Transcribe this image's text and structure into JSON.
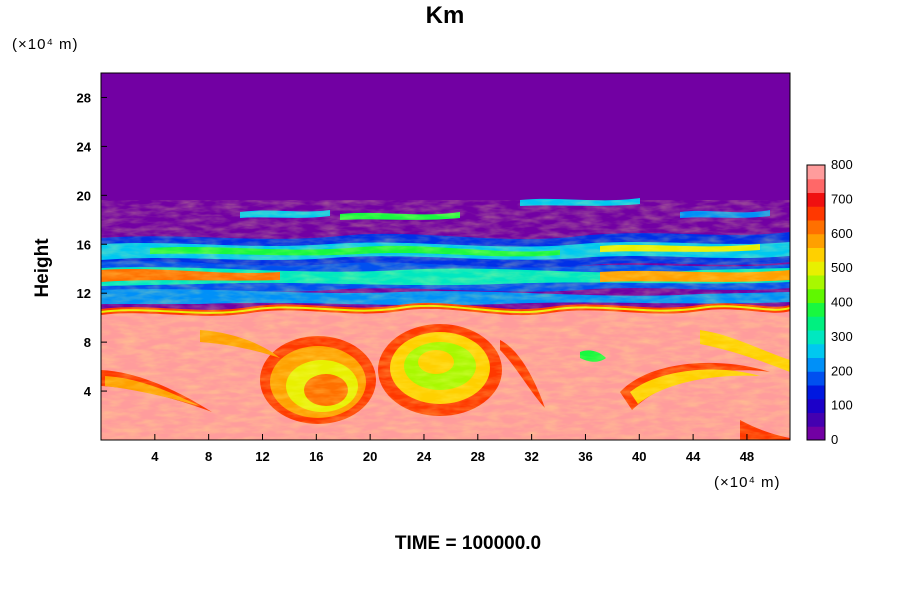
{
  "chart_data": {
    "type": "heatmap",
    "title": "Km",
    "ylabel": "Height",
    "y_unit": "(×10⁴ m)",
    "x_unit": "(×10⁴ m)",
    "x_ticks": [
      "4",
      "8",
      "12",
      "16",
      "20",
      "24",
      "28",
      "32",
      "36",
      "40",
      "44",
      "48"
    ],
    "y_ticks": [
      "4",
      "8",
      "12",
      "16",
      "20",
      "24",
      "28"
    ],
    "xlim": [
      0,
      51.2
    ],
    "ylim": [
      0,
      30
    ],
    "colorbar": {
      "min": 0,
      "max": 800,
      "ticks": [
        "0",
        "100",
        "200",
        "300",
        "400",
        "500",
        "600",
        "700",
        "800"
      ],
      "colors": [
        "#7200a3",
        "#4400b0",
        "#1c00c8",
        "#0018e0",
        "#0050f0",
        "#0090f8",
        "#00c8f0",
        "#00e8c0",
        "#00f080",
        "#18f840",
        "#60f800",
        "#a8f800",
        "#e8f000",
        "#ffd000",
        "#ffa000",
        "#ff7000",
        "#ff3800",
        "#f01010",
        "#ff6868",
        "#ff9c9c"
      ]
    },
    "caption": "TIME = 100000.0"
  }
}
